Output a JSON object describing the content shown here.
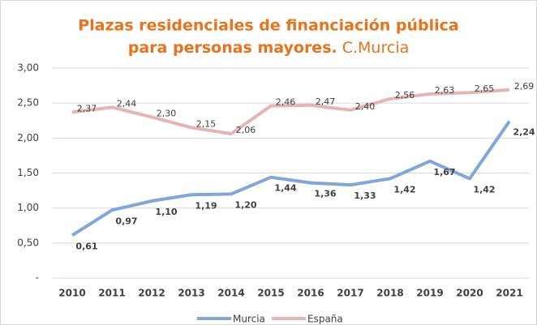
{
  "chart_data": {
    "type": "line",
    "title": [
      "Plazas residenciales de financiación pública",
      "para personas mayores."
    ],
    "subtitle": "C.Murcia",
    "categories": [
      "2010",
      "2011",
      "2012",
      "2013",
      "2014",
      "2015",
      "2016",
      "2017",
      "2018",
      "2019",
      "2020",
      "2021"
    ],
    "series": [
      {
        "name": "Murcia",
        "color": "#7fa7dc",
        "values": [
          0.61,
          0.97,
          1.1,
          1.19,
          1.2,
          1.44,
          1.36,
          1.33,
          1.42,
          1.67,
          1.42,
          2.24
        ],
        "value_labels": [
          "0,61",
          "0,97",
          "1,10",
          "1,19",
          "1,20",
          "1,44",
          "1,36",
          "1,33",
          "1,42",
          "1,67",
          "1,42",
          "2,24"
        ]
      },
      {
        "name": "España",
        "color": "#e6b4b4",
        "values": [
          2.37,
          2.44,
          2.3,
          2.15,
          2.06,
          2.46,
          2.47,
          2.4,
          2.56,
          2.63,
          2.65,
          2.69
        ],
        "value_labels": [
          "2,37",
          "2,44",
          "2,30",
          "2,15",
          "2,06",
          "2,46",
          "2,47",
          "2,40",
          "2,56",
          "2,63",
          "2,65",
          "2,69"
        ]
      }
    ],
    "ylim": [
      0,
      3
    ],
    "yticks": [
      {
        "value": 0,
        "label": "-"
      },
      {
        "value": 0.5,
        "label": "0,50"
      },
      {
        "value": 1,
        "label": "1,00"
      },
      {
        "value": 1.5,
        "label": "1,50"
      },
      {
        "value": 2,
        "label": "2,00"
      },
      {
        "value": 2.5,
        "label": "2,50"
      },
      {
        "value": 3,
        "label": "3,00"
      }
    ],
    "grid": true,
    "legend": "bottom"
  }
}
